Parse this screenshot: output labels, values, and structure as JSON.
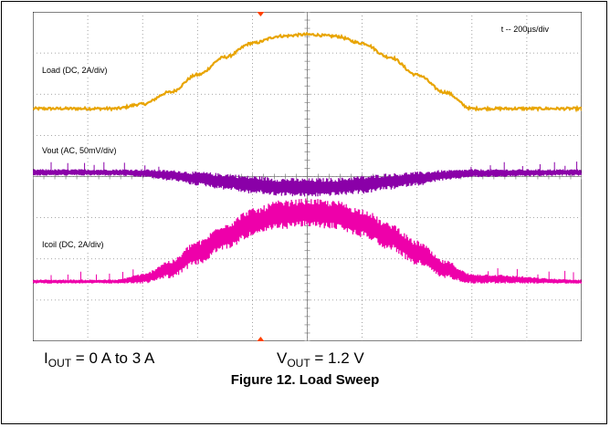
{
  "figure": {
    "title": "Figure 12.  Load Sweep"
  },
  "conditions": {
    "iout": {
      "symbol": "I",
      "subscript": "OUT",
      "text": " = 0 A to 3 A"
    },
    "vout": {
      "symbol": "V",
      "subscript": "OUT",
      "text": " = 1.2 V"
    }
  },
  "chart_data": {
    "type": "line",
    "title": "",
    "time_base": "t -- 200µs/div",
    "grid": true,
    "divisions": {
      "x": 10,
      "y": 8
    },
    "trigger_marker_color": "#ff4000",
    "series": [
      {
        "name": "Load (DC, 2A/div)",
        "color": "#e8a400",
        "unit": "div",
        "x": [
          0,
          1.5,
          2.0,
          2.5,
          3.0,
          3.5,
          4.0,
          4.5,
          5.0,
          5.5,
          6.0,
          6.5,
          7.0,
          7.5,
          8.0,
          10
        ],
        "y": [
          1.65,
          1.65,
          1.76,
          2.05,
          2.47,
          2.9,
          3.24,
          3.41,
          3.45,
          3.41,
          3.24,
          2.9,
          2.47,
          2.05,
          1.65,
          1.65
        ],
        "noise": 0.03
      },
      {
        "name": "Vout (AC, 50mV/div)",
        "color": "#8a00a8",
        "unit": "div",
        "x": [
          0,
          1.5,
          2.0,
          2.5,
          3.0,
          3.5,
          4.0,
          4.5,
          5.0,
          5.5,
          6.0,
          6.5,
          7.0,
          7.5,
          8.0,
          10
        ],
        "y": [
          0.1,
          0.1,
          0.08,
          0.03,
          -0.05,
          -0.12,
          -0.2,
          -0.25,
          -0.27,
          -0.25,
          -0.2,
          -0.12,
          -0.05,
          0.03,
          0.08,
          0.1
        ],
        "band_halfwidth": [
          0.08,
          0.08,
          0.1,
          0.13,
          0.17,
          0.2,
          0.22,
          0.22,
          0.23,
          0.22,
          0.22,
          0.2,
          0.17,
          0.13,
          0.1,
          0.08
        ]
      },
      {
        "name": "Icoil (DC, 2A/div)",
        "color": "#ee00aa",
        "unit": "div",
        "x": [
          0,
          1.5,
          2.0,
          2.5,
          3.0,
          3.5,
          4.0,
          4.5,
          5.0,
          5.5,
          6.0,
          6.5,
          7.0,
          7.5,
          8.0,
          10
        ],
        "y": [
          -2.55,
          -2.55,
          -2.48,
          -2.25,
          -1.85,
          -1.45,
          -1.12,
          -0.93,
          -0.88,
          -0.93,
          -1.12,
          -1.45,
          -1.85,
          -2.25,
          -2.48,
          -2.55
        ],
        "band_halfwidth": [
          0.05,
          0.05,
          0.12,
          0.22,
          0.3,
          0.33,
          0.35,
          0.35,
          0.35,
          0.35,
          0.35,
          0.33,
          0.3,
          0.22,
          0.12,
          0.05
        ]
      }
    ]
  }
}
